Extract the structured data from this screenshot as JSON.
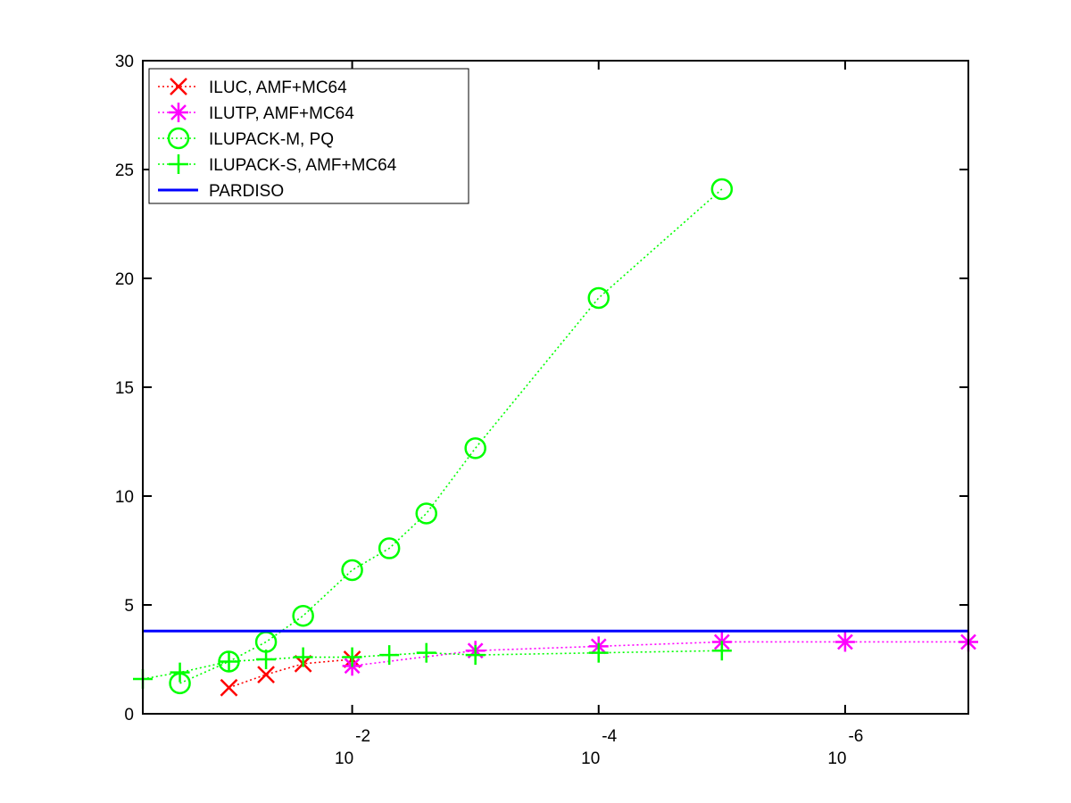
{
  "chart_data": {
    "type": "line",
    "title": "",
    "xlabel": "",
    "ylabel": "",
    "x_scale": "log",
    "x_direction": "decreasing",
    "xlim": [
      0.5,
      1e-07
    ],
    "ylim": [
      0,
      30
    ],
    "y_ticks": [
      0,
      5,
      10,
      15,
      20,
      25,
      30
    ],
    "x_ticks": [
      {
        "value": 0.01,
        "base": "10",
        "exponent": "-2"
      },
      {
        "value": 0.0001,
        "base": "10",
        "exponent": "-4"
      },
      {
        "value": 1e-06,
        "base": "10",
        "exponent": "-6"
      }
    ],
    "grid": false,
    "legend_position": "top-left",
    "series": [
      {
        "name": "ILUC, AMF+MC64",
        "color": "#ff0000",
        "marker": "x",
        "line_style": "dotted",
        "points": [
          {
            "x": 0.1,
            "y": 1.2
          },
          {
            "x": 0.05,
            "y": 1.8
          },
          {
            "x": 0.025,
            "y": 2.3
          },
          {
            "x": 0.01,
            "y": 2.5
          }
        ]
      },
      {
        "name": "ILUTP, AMF+MC64",
        "color": "#ff00ff",
        "marker": "asterisk",
        "line_style": "dotted",
        "points": [
          {
            "x": 0.01,
            "y": 2.2
          },
          {
            "x": 0.001,
            "y": 2.9
          },
          {
            "x": 0.0001,
            "y": 3.1
          },
          {
            "x": 1e-05,
            "y": 3.3
          },
          {
            "x": 1e-06,
            "y": 3.3
          },
          {
            "x": 1e-07,
            "y": 3.3
          }
        ]
      },
      {
        "name": "ILUPACK-M, PQ",
        "color": "#00ff00",
        "marker": "circle",
        "line_style": "dotted",
        "points": [
          {
            "x": 0.25,
            "y": 1.4
          },
          {
            "x": 0.1,
            "y": 2.4
          },
          {
            "x": 0.05,
            "y": 3.3
          },
          {
            "x": 0.025,
            "y": 4.5
          },
          {
            "x": 0.01,
            "y": 6.6
          },
          {
            "x": 0.005,
            "y": 7.6
          },
          {
            "x": 0.0025,
            "y": 9.2
          },
          {
            "x": 0.001,
            "y": 12.2
          },
          {
            "x": 0.0001,
            "y": 19.1
          },
          {
            "x": 1e-05,
            "y": 24.1
          }
        ]
      },
      {
        "name": "ILUPACK-S, AMF+MC64",
        "color": "#00ff00",
        "marker": "plus",
        "line_style": "dotted",
        "points": [
          {
            "x": 0.5,
            "y": 1.6
          },
          {
            "x": 0.25,
            "y": 1.9
          },
          {
            "x": 0.1,
            "y": 2.4
          },
          {
            "x": 0.05,
            "y": 2.5
          },
          {
            "x": 0.025,
            "y": 2.6
          },
          {
            "x": 0.01,
            "y": 2.6
          },
          {
            "x": 0.005,
            "y": 2.7
          },
          {
            "x": 0.0025,
            "y": 2.8
          },
          {
            "x": 0.001,
            "y": 2.7
          },
          {
            "x": 0.0001,
            "y": 2.8
          },
          {
            "x": 1e-05,
            "y": 2.9
          }
        ]
      },
      {
        "name": "PARDISO",
        "color": "#0000ff",
        "marker": "none",
        "line_style": "solid",
        "points": [
          {
            "x": 0.5,
            "y": 3.8
          },
          {
            "x": 1e-07,
            "y": 3.8
          }
        ]
      }
    ]
  }
}
